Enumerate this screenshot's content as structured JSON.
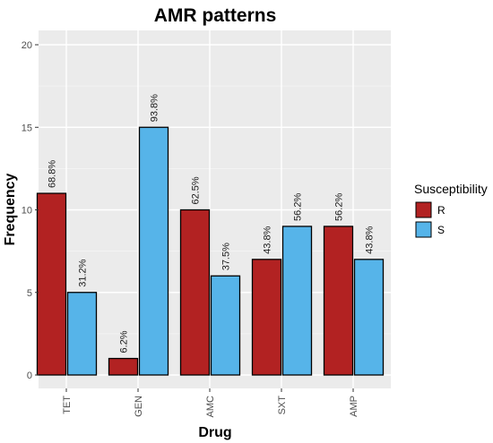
{
  "chart_data": {
    "type": "bar",
    "title": "AMR patterns",
    "xlabel": "Drug",
    "ylabel": "Frequency",
    "categories": [
      "TET",
      "GEN",
      "AMC",
      "SXT",
      "AMP"
    ],
    "series": [
      {
        "name": "R",
        "color": "#b22222",
        "values": [
          11,
          1,
          10,
          7,
          9
        ],
        "labels": [
          "68.8%",
          "6.2%",
          "62.5%",
          "43.8%",
          "56.2%"
        ]
      },
      {
        "name": "S",
        "color": "#56b4e9",
        "values": [
          5,
          15,
          6,
          9,
          7
        ],
        "labels": [
          "31.2%",
          "93.8%",
          "37.5%",
          "56.2%",
          "43.8%"
        ]
      }
    ],
    "ylim": [
      0,
      21
    ],
    "yticks": [
      0,
      5,
      10,
      15,
      20
    ],
    "grid": true,
    "panel_background": "#ebebeb",
    "legend": {
      "title": "Susceptibility",
      "placement": "right"
    }
  }
}
